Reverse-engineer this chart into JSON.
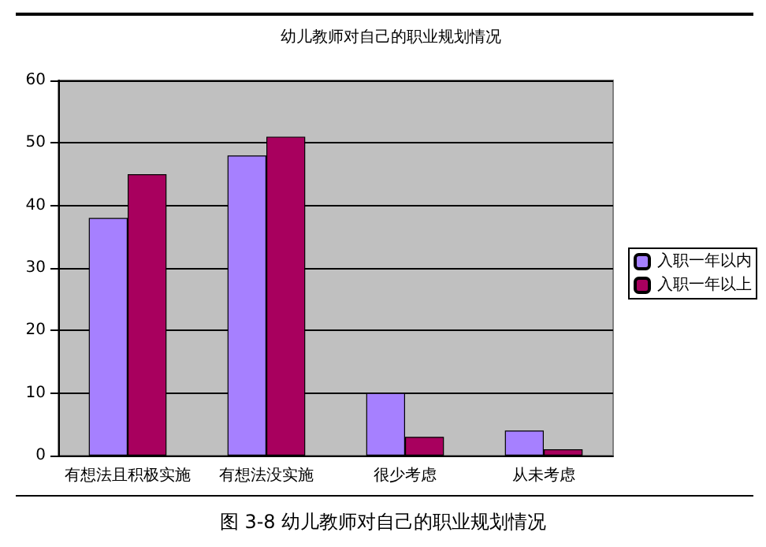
{
  "chart_data": {
    "type": "bar",
    "title": "幼儿教师对自己的职业规划情况",
    "categories": [
      "有想法且积极实施",
      "有想法没实施",
      "很少考虑",
      "从未考虑"
    ],
    "series": [
      {
        "name": "入职一年以内",
        "color": "#a680ff",
        "values": [
          38,
          48,
          10,
          4
        ]
      },
      {
        "name": "入职一年以上",
        "color": "#a8005e",
        "values": [
          45,
          51,
          3,
          1
        ]
      }
    ],
    "ylim": [
      0,
      60
    ],
    "yticks": [
      0,
      10,
      20,
      30,
      40,
      50,
      60
    ],
    "grid": "y",
    "legend": "right",
    "annotations": [
      "图 3-8 幼儿教师对自己的职业规划情况"
    ]
  }
}
